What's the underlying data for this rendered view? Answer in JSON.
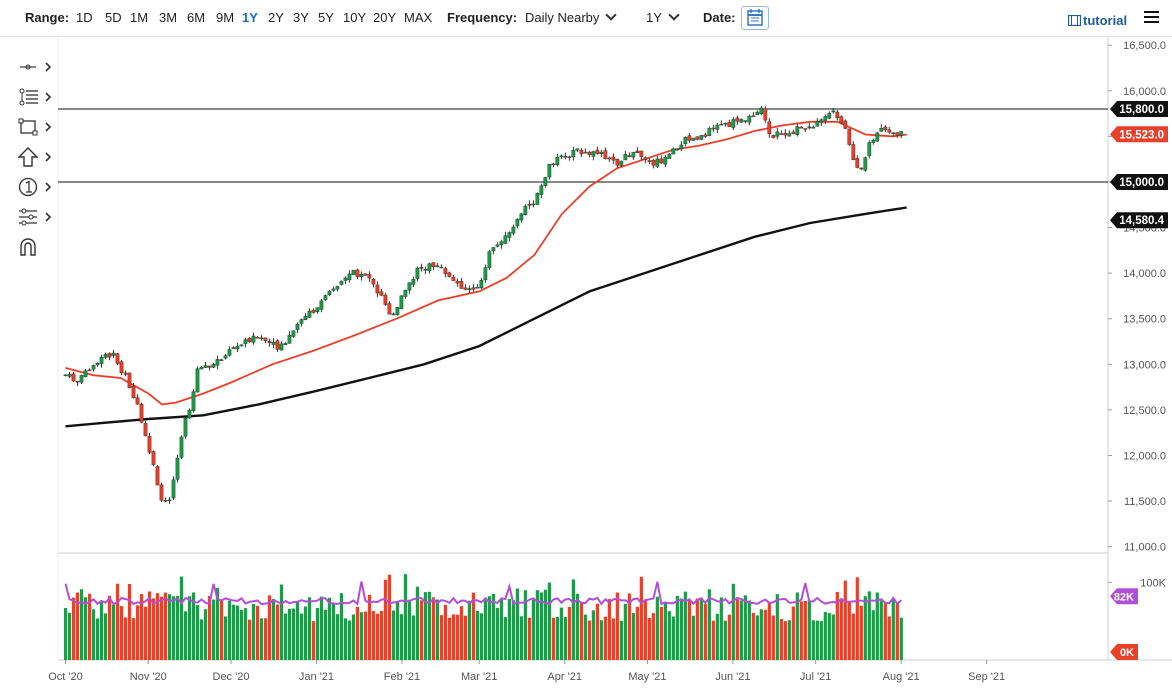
{
  "toolbar": {
    "range_label": "Range:",
    "ranges": [
      "1D",
      "5D",
      "1M",
      "3M",
      "6M",
      "9M",
      "1Y",
      "2Y",
      "3Y",
      "5Y",
      "10Y",
      "20Y",
      "MAX"
    ],
    "active_range": "1Y",
    "frequency_label": "Frequency:",
    "frequency_value": "Daily Nearby",
    "period_value": "1Y",
    "date_label": "Date:",
    "tutorial_label": "tutorial"
  },
  "colors": {
    "up": "#1f9a4a",
    "down": "#e8412b",
    "ma_short": "#e8412b",
    "ma_long": "#111111",
    "volume_avg": "#b14fd6",
    "price_tag_red": "#e8412b",
    "price_tag_black": "#111111",
    "volume_tag": "#b14fd6",
    "active_accent": "#1a6dc6"
  },
  "tools": [
    "crosshair-tool",
    "fibonacci-tool",
    "rectangle-tool",
    "arrow-up-tool",
    "annotation-tool",
    "measure-tool",
    "magnet-tool"
  ],
  "chart_data": {
    "type": "candlestick",
    "y_axis": {
      "ticks": [
        11000,
        11500,
        12000,
        12500,
        13000,
        13500,
        14000,
        14500,
        15000,
        15500,
        16000,
        16500
      ],
      "tick_labels": [
        "11,000.0",
        "11,500.0",
        "12,000.0",
        "12,500.0",
        "13,000.0",
        "13,500.0",
        "14,000.0",
        "14,500.0",
        "15,000.0",
        "15,500.0",
        "16,000.0",
        "16,500.0"
      ],
      "range": [
        10930,
        16590
      ]
    },
    "x_axis": {
      "labels": [
        "Oct '20",
        "Nov '20",
        "Dec '20",
        "Jan '21",
        "Feb '21",
        "Mar '21",
        "Apr '21",
        "May '21",
        "Jun '21",
        "Jul '21",
        "Aug '21",
        "Sep '21"
      ],
      "label_days": [
        -30,
        0,
        30,
        61,
        92,
        120,
        151,
        181,
        212,
        242,
        273,
        304
      ],
      "range_days": [
        -32,
        348
      ]
    },
    "horizontal_lines": [
      {
        "value": 15800,
        "label": "15,800.0"
      },
      {
        "value": 15000,
        "label": "15,000.0"
      }
    ],
    "price_tags": [
      {
        "value": 15523,
        "label": "15,523.0",
        "style": "red"
      },
      {
        "value": 14580.4,
        "label": "14,580.4",
        "style": "black"
      }
    ],
    "anchors": [
      [
        -30,
        12880
      ],
      [
        -25,
        12820
      ],
      [
        -18,
        13050
      ],
      [
        -13,
        13120
      ],
      [
        -8,
        12850
      ],
      [
        -4,
        12550
      ],
      [
        -1,
        12250
      ],
      [
        3,
        11750
      ],
      [
        5,
        11450
      ],
      [
        8,
        11520
      ],
      [
        11,
        12050
      ],
      [
        13,
        12400
      ],
      [
        16,
        12600
      ],
      [
        18,
        12950
      ],
      [
        24,
        13020
      ],
      [
        32,
        13200
      ],
      [
        40,
        13300
      ],
      [
        48,
        13180
      ],
      [
        55,
        13480
      ],
      [
        62,
        13650
      ],
      [
        68,
        13850
      ],
      [
        74,
        14000
      ],
      [
        80,
        13950
      ],
      [
        85,
        13700
      ],
      [
        88,
        13500
      ],
      [
        92,
        13750
      ],
      [
        98,
        14050
      ],
      [
        104,
        14100
      ],
      [
        110,
        13950
      ],
      [
        116,
        13800
      ],
      [
        121,
        13900
      ],
      [
        124,
        14250
      ],
      [
        130,
        14400
      ],
      [
        135,
        14650
      ],
      [
        140,
        14800
      ],
      [
        146,
        15200
      ],
      [
        152,
        15300
      ],
      [
        158,
        15350
      ],
      [
        164,
        15300
      ],
      [
        170,
        15200
      ],
      [
        176,
        15350
      ],
      [
        182,
        15200
      ],
      [
        188,
        15250
      ],
      [
        194,
        15450
      ],
      [
        200,
        15500
      ],
      [
        206,
        15600
      ],
      [
        212,
        15650
      ],
      [
        218,
        15700
      ],
      [
        222,
        15800
      ],
      [
        226,
        15500
      ],
      [
        232,
        15550
      ],
      [
        238,
        15600
      ],
      [
        244,
        15650
      ],
      [
        248,
        15800
      ],
      [
        252,
        15650
      ],
      [
        256,
        15200
      ],
      [
        258,
        15100
      ],
      [
        262,
        15450
      ],
      [
        266,
        15600
      ],
      [
        270,
        15560
      ],
      [
        274,
        15523
      ]
    ],
    "ma_short": [
      [
        -30,
        12960
      ],
      [
        -20,
        12880
      ],
      [
        -10,
        12850
      ],
      [
        0,
        12680
      ],
      [
        5,
        12560
      ],
      [
        10,
        12580
      ],
      [
        20,
        12680
      ],
      [
        30,
        12800
      ],
      [
        45,
        13000
      ],
      [
        60,
        13150
      ],
      [
        75,
        13320
      ],
      [
        90,
        13500
      ],
      [
        105,
        13700
      ],
      [
        120,
        13800
      ],
      [
        130,
        13950
      ],
      [
        140,
        14200
      ],
      [
        150,
        14650
      ],
      [
        160,
        14950
      ],
      [
        170,
        15150
      ],
      [
        180,
        15250
      ],
      [
        190,
        15350
      ],
      [
        200,
        15400
      ],
      [
        210,
        15470
      ],
      [
        220,
        15560
      ],
      [
        230,
        15620
      ],
      [
        240,
        15660
      ],
      [
        250,
        15660
      ],
      [
        260,
        15520
      ],
      [
        270,
        15500
      ],
      [
        275,
        15520
      ]
    ],
    "ma_long": [
      [
        -30,
        12320
      ],
      [
        -15,
        12360
      ],
      [
        0,
        12400
      ],
      [
        20,
        12440
      ],
      [
        40,
        12560
      ],
      [
        60,
        12700
      ],
      [
        80,
        12850
      ],
      [
        100,
        13000
      ],
      [
        120,
        13200
      ],
      [
        140,
        13500
      ],
      [
        160,
        13800
      ],
      [
        180,
        14000
      ],
      [
        200,
        14200
      ],
      [
        220,
        14400
      ],
      [
        240,
        14550
      ],
      [
        260,
        14650
      ],
      [
        275,
        14720
      ]
    ],
    "volume_panel": {
      "ticks": [
        0,
        100000
      ],
      "tick_labels": [
        "0K",
        "100K"
      ],
      "current_tag": {
        "value": 82000,
        "label": "82K"
      },
      "zero_tag": {
        "value": 0,
        "label": "0K"
      },
      "range": [
        0,
        130000
      ]
    }
  }
}
